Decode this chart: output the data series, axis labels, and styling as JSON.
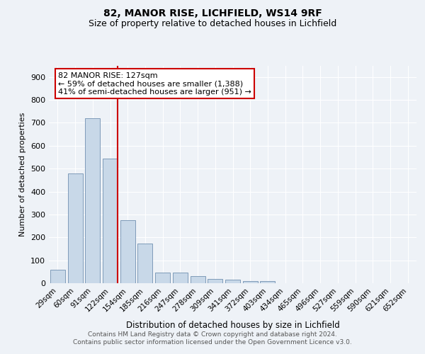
{
  "title1": "82, MANOR RISE, LICHFIELD, WS14 9RF",
  "title2": "Size of property relative to detached houses in Lichfield",
  "xlabel": "Distribution of detached houses by size in Lichfield",
  "ylabel": "Number of detached properties",
  "bar_labels": [
    "29sqm",
    "60sqm",
    "91sqm",
    "122sqm",
    "154sqm",
    "185sqm",
    "216sqm",
    "247sqm",
    "278sqm",
    "309sqm",
    "341sqm",
    "372sqm",
    "403sqm",
    "434sqm",
    "465sqm",
    "496sqm",
    "527sqm",
    "559sqm",
    "590sqm",
    "621sqm",
    "652sqm"
  ],
  "bar_values": [
    60,
    480,
    720,
    545,
    275,
    172,
    47,
    47,
    32,
    20,
    15,
    8,
    8,
    0,
    0,
    0,
    0,
    0,
    0,
    0,
    0
  ],
  "bar_color": "#c8d8e8",
  "bar_edge_color": "#7090b0",
  "vline_color": "#cc0000",
  "vline_index": 3,
  "annotation_text": "82 MANOR RISE: 127sqm\n← 59% of detached houses are smaller (1,388)\n41% of semi-detached houses are larger (951) →",
  "annotation_box_color": "#ffffff",
  "annotation_box_edge": "#cc0000",
  "ylim": [
    0,
    950
  ],
  "yticks": [
    0,
    100,
    200,
    300,
    400,
    500,
    600,
    700,
    800,
    900
  ],
  "footer": "Contains HM Land Registry data © Crown copyright and database right 2024.\nContains public sector information licensed under the Open Government Licence v3.0.",
  "background_color": "#eef2f7",
  "grid_color": "#ffffff"
}
